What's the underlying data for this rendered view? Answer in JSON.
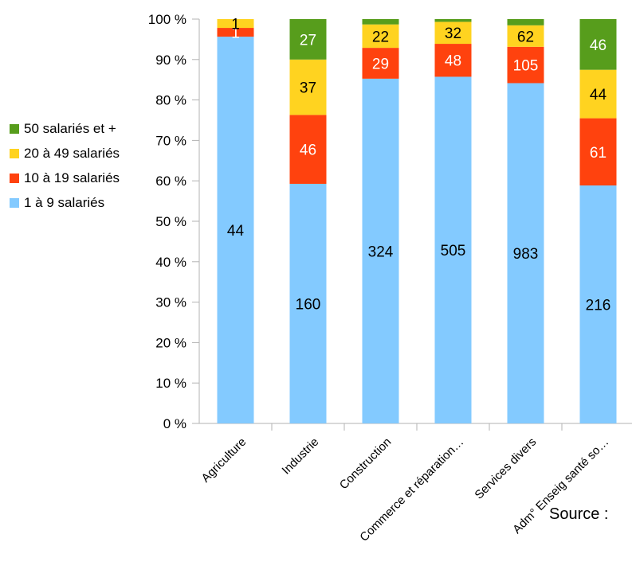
{
  "chart_data": {
    "type": "bar",
    "stacked": "percent",
    "categories": [
      "Agriculture",
      "Industrie",
      "Construction",
      "Commerce et réparation…",
      "Services divers",
      "Adm° Enseig santé so…"
    ],
    "series": [
      {
        "name": "1 à 9 salariés",
        "color": "#83caff",
        "values": [
          44,
          160,
          324,
          505,
          983,
          216
        ],
        "labels": [
          "44",
          "160",
          "324",
          "505",
          "983",
          "216"
        ],
        "label_color": "#000000"
      },
      {
        "name": "10 à 19 salariés",
        "color": "#ff420e",
        "values": [
          1,
          46,
          29,
          48,
          105,
          61
        ],
        "labels": [
          "1",
          "46",
          "29",
          "48",
          "105",
          "61"
        ],
        "label_color": "#ffffff"
      },
      {
        "name": "20 à 49 salariés",
        "color": "#ffd320",
        "values": [
          1,
          37,
          22,
          32,
          62,
          44
        ],
        "labels": [
          "1",
          "37",
          "22",
          "32",
          "62",
          "44"
        ],
        "label_color": "#000000"
      },
      {
        "name": "50 salariés et +",
        "color": "#579d1c",
        "values": [
          0,
          27,
          5,
          4,
          18,
          46
        ],
        "labels": [
          "",
          "27",
          "",
          "",
          "",
          "46"
        ],
        "label_color": "#ffffff"
      }
    ],
    "ylim": [
      0,
      100
    ],
    "y_ticks": [
      "0 %",
      "10 %",
      "20 %",
      "30 %",
      "40 %",
      "50 %",
      "60 %",
      "70 %",
      "80 %",
      "90 %",
      "100 %"
    ],
    "grid": false,
    "legend_position": "left"
  },
  "legend": [
    {
      "label": "50 salariés et +",
      "color": "#579d1c"
    },
    {
      "label": "20 à 49 salariés",
      "color": "#ffd320"
    },
    {
      "label": "10 à 19 salariés",
      "color": "#ff420e"
    },
    {
      "label": "1 à 9 salariés",
      "color": "#83caff"
    }
  ],
  "source_text": "Source :"
}
